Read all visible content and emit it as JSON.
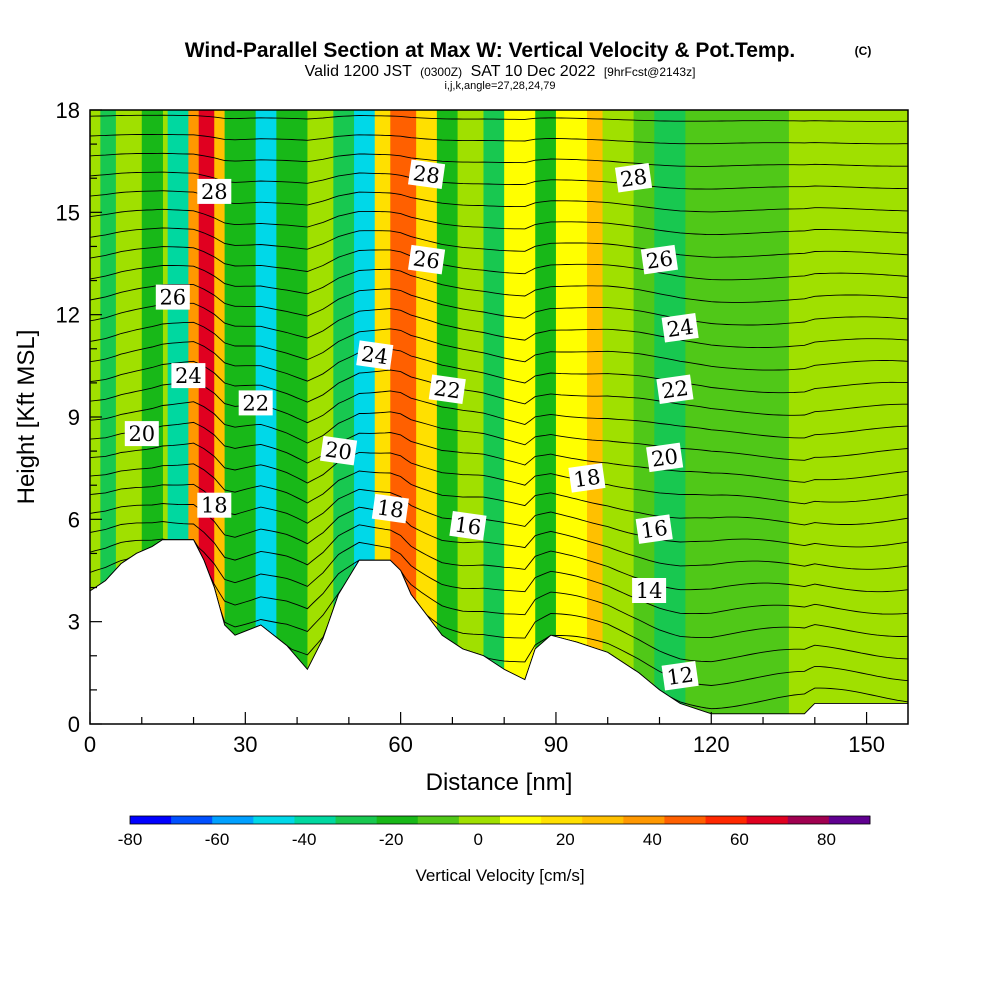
{
  "title": {
    "main": "Wind-Parallel Section at Max W: Vertical Velocity & Pot.Temp.",
    "copyright": "(C)",
    "valid_prefix": "Valid 1200 JST",
    "valid_utc": "(0300Z)",
    "valid_date": "SAT 10 Dec 2022",
    "fcst": "[9hrFcst@2143z]",
    "indices": "i,j,k,angle=27,28,24,79"
  },
  "chart_data": {
    "type": "heatmap",
    "xlabel": "Distance [nm]",
    "ylabel": "Height [Kft MSL]",
    "xlim": [
      0,
      158
    ],
    "ylim": [
      0,
      18
    ],
    "x_ticks": [
      0,
      30,
      60,
      90,
      120,
      150
    ],
    "y_ticks": [
      0,
      3,
      6,
      9,
      12,
      15,
      18
    ],
    "colorbar": {
      "label": "Vertical Velocity [cm/s]",
      "min": -80,
      "max": 90,
      "step": 10,
      "tick_values": [
        -80,
        -60,
        -40,
        -20,
        0,
        20,
        40,
        60,
        80
      ],
      "colors": [
        "#0000ff",
        "#0050ff",
        "#00a0ff",
        "#00d8e8",
        "#00d8a0",
        "#18c850",
        "#18b818",
        "#50c818",
        "#a0e000",
        "#ffff00",
        "#ffe000",
        "#ffc000",
        "#ff9800",
        "#ff6000",
        "#ff2800",
        "#e00020",
        "#a00050",
        "#600090"
      ]
    },
    "terrain_kft": [
      [
        0,
        3.9
      ],
      [
        3,
        4.2
      ],
      [
        6,
        4.7
      ],
      [
        9,
        5.0
      ],
      [
        12,
        5.2
      ],
      [
        14,
        5.4
      ],
      [
        20,
        5.4
      ],
      [
        22,
        4.8
      ],
      [
        24,
        4.0
      ],
      [
        26,
        2.9
      ],
      [
        28,
        2.6
      ],
      [
        33,
        2.9
      ],
      [
        38,
        2.3
      ],
      [
        42,
        1.6
      ],
      [
        45,
        2.5
      ],
      [
        48,
        3.8
      ],
      [
        52,
        4.8
      ],
      [
        58,
        4.8
      ],
      [
        60,
        4.5
      ],
      [
        62,
        3.8
      ],
      [
        65,
        3.2
      ],
      [
        68,
        2.6
      ],
      [
        72,
        2.2
      ],
      [
        76,
        2.0
      ],
      [
        80,
        1.6
      ],
      [
        84,
        1.3
      ],
      [
        86,
        2.2
      ],
      [
        89,
        2.6
      ],
      [
        94,
        2.4
      ],
      [
        100,
        2.1
      ],
      [
        106,
        1.5
      ],
      [
        110,
        1.0
      ],
      [
        114,
        0.6
      ],
      [
        120,
        0.3
      ],
      [
        138,
        0.3
      ],
      [
        140,
        0.6
      ],
      [
        158,
        0.6
      ]
    ],
    "vertical_velocity_bands": [
      {
        "x": 2,
        "w": 3,
        "value": -30
      },
      {
        "x": 5,
        "w": 4,
        "value": 5
      },
      {
        "x": 10,
        "w": 4,
        "value": -20
      },
      {
        "x": 15,
        "w": 4,
        "value": -40
      },
      {
        "x": 19,
        "w": 2,
        "value": 40
      },
      {
        "x": 21,
        "w": 3,
        "value": 70
      },
      {
        "x": 24,
        "w": 2,
        "value": 30
      },
      {
        "x": 26,
        "w": 6,
        "value": -20
      },
      {
        "x": 32,
        "w": 4,
        "value": -50
      },
      {
        "x": 36,
        "w": 6,
        "value": -20
      },
      {
        "x": 42,
        "w": 4,
        "value": 5
      },
      {
        "x": 47,
        "w": 4,
        "value": -30
      },
      {
        "x": 51,
        "w": 4,
        "value": -50
      },
      {
        "x": 55,
        "w": 3,
        "value": 20
      },
      {
        "x": 58,
        "w": 5,
        "value": 50
      },
      {
        "x": 63,
        "w": 4,
        "value": 20
      },
      {
        "x": 67,
        "w": 4,
        "value": -20
      },
      {
        "x": 71,
        "w": 5,
        "value": 5
      },
      {
        "x": 76,
        "w": 4,
        "value": -30
      },
      {
        "x": 80,
        "w": 6,
        "value": 10
      },
      {
        "x": 86,
        "w": 4,
        "value": -20
      },
      {
        "x": 90,
        "w": 6,
        "value": 15
      },
      {
        "x": 96,
        "w": 3,
        "value": 30
      },
      {
        "x": 99,
        "w": 6,
        "value": 5
      },
      {
        "x": 105,
        "w": 4,
        "value": -10
      },
      {
        "x": 109,
        "w": 6,
        "value": -25
      },
      {
        "x": 115,
        "w": 8,
        "value": -10
      },
      {
        "x": 123,
        "w": 12,
        "value": -5
      },
      {
        "x": 135,
        "w": 6,
        "value": 0
      },
      {
        "x": 141,
        "w": 17,
        "value": 0
      }
    ],
    "theta_contours": [
      {
        "level": 12,
        "label_x": 114,
        "label_y": 1.4
      },
      {
        "level": 14,
        "label_x": 108,
        "label_y": 3.9
      },
      {
        "level": 16,
        "label_x": 73,
        "label_y": 5.8
      },
      {
        "level": 16,
        "label_x": 109,
        "label_y": 5.7
      },
      {
        "level": 18,
        "label_x": 24,
        "label_y": 6.4
      },
      {
        "level": 18,
        "label_x": 58,
        "label_y": 6.3
      },
      {
        "level": 18,
        "label_x": 96,
        "label_y": 7.2
      },
      {
        "level": 20,
        "label_x": 10,
        "label_y": 8.5
      },
      {
        "level": 20,
        "label_x": 48,
        "label_y": 8.0
      },
      {
        "level": 20,
        "label_x": 111,
        "label_y": 7.8
      },
      {
        "level": 22,
        "label_x": 32,
        "label_y": 9.4
      },
      {
        "level": 22,
        "label_x": 69,
        "label_y": 9.8
      },
      {
        "level": 22,
        "label_x": 113,
        "label_y": 9.8
      },
      {
        "level": 24,
        "label_x": 19,
        "label_y": 10.2
      },
      {
        "level": 24,
        "label_x": 55,
        "label_y": 10.8
      },
      {
        "level": 24,
        "label_x": 114,
        "label_y": 11.6
      },
      {
        "level": 26,
        "label_x": 16,
        "label_y": 12.5
      },
      {
        "level": 26,
        "label_x": 65,
        "label_y": 13.6
      },
      {
        "level": 26,
        "label_x": 110,
        "label_y": 13.6
      },
      {
        "level": 28,
        "label_x": 24,
        "label_y": 15.6
      },
      {
        "level": 28,
        "label_x": 65,
        "label_y": 16.1
      },
      {
        "level": 28,
        "label_x": 105,
        "label_y": 16.0
      }
    ]
  }
}
